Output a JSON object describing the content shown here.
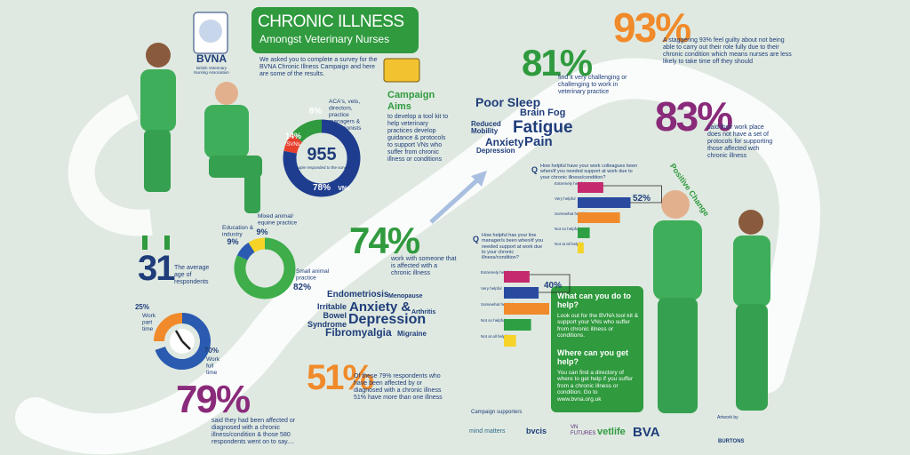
{
  "header": {
    "title": "CHRONIC ILLNESS",
    "subtitle": "Amongst Veterinary Nurses"
  },
  "logo": {
    "name": "BVNA",
    "full_name": "British Veterinary Nursing Association"
  },
  "intro": "We asked you to complete a survey for the BVNA Chronic Illness Campaign and here are some of the results.",
  "campaign": {
    "title": "Campaign Aims",
    "text": "to develop a tool kit to help veterinary practices develop guidance & protocols to support VNs who suffer from chronic illness or conditions"
  },
  "respondents": {
    "total": "955",
    "total_label": "people responded to the survey",
    "segments": [
      {
        "label": "ACA's, vets, directors, practice managers & receptionists",
        "value": 8,
        "value_label": "8%",
        "color": "#e8402e"
      },
      {
        "label": "SVNs",
        "value": 14,
        "value_label": "14%",
        "color": "#2f9a3e"
      },
      {
        "label": "VNs",
        "value": 78,
        "value_label": "78%",
        "color": "#1f3d8f"
      }
    ]
  },
  "age": {
    "value": "31",
    "label": "The average age of respondents"
  },
  "practice": {
    "segments": [
      {
        "label": "Education & industry",
        "value": 9,
        "value_label": "9%",
        "color": "#2a5bb0"
      },
      {
        "label": "Mixed animal/ equine practice",
        "value": 9,
        "value_label": "9%",
        "color": "#f5d327"
      },
      {
        "label": "Small animal practice",
        "value": 82,
        "value_label": "82%",
        "color": "#3fae4a"
      }
    ]
  },
  "work": {
    "segments": [
      {
        "label": "Work part time",
        "value": 25,
        "value_label": "25%",
        "color": "#f08a2a"
      },
      {
        "label": "Work full time",
        "value": 70,
        "value_label": "70%",
        "color": "#2a5bb0"
      }
    ]
  },
  "stats": [
    {
      "value": "79%",
      "text": "said they had been affected or diagnosed with a chronic illness/condition & those 580 respondents went on to say...."
    },
    {
      "value": "51%",
      "text": "Of these 79% respondents who have been affected by or diagnosed with a chronic illness 51% have more than one illness"
    },
    {
      "value": "74%",
      "text": "work with someone that is affected with a chronic illness"
    },
    {
      "value": "81%",
      "text": "find it very challenging or challenging to work in veterinary practice"
    },
    {
      "value": "93%",
      "text": "A staggering 93% feel guilty about not being able to carry out their role fully due to their chronic condition which means nurses are less likely to take time off they should"
    },
    {
      "value": "83%",
      "text": "said their work place does not have a set of protocols for supporting those affected with chronic illness"
    }
  ],
  "positive_change": "Positive Change",
  "symptoms": [
    "Poor Sleep",
    "Brain Fog",
    "Reduced Mobility",
    "Fatigue",
    "Anxiety",
    "Pain",
    "Depression"
  ],
  "conditions": [
    "Endometriosis",
    "Menopause",
    "Irritable Bowel Syndrome",
    "Anxiety &",
    "Arthritis",
    "Depression",
    "Fibromyalgia",
    "Migraine"
  ],
  "colleagues": {
    "question": "How helpful have your work colleagues been when/if you needed support at work due to your chronic illness/condition?",
    "categories": [
      "Extremely helpful",
      "Very helpful",
      "Somewhat helpful",
      "Not so helpful",
      "Not at all helpful"
    ],
    "values": [
      17,
      35,
      28,
      8,
      4
    ],
    "colors": [
      "#c5296e",
      "#2a4aa0",
      "#f08a2a",
      "#2ea043",
      "#f5d327"
    ],
    "combined": "52%"
  },
  "managers": {
    "question": "How helpful has your line manager/s been when/if you needed support at work due to your chronic illness/condition?",
    "categories": [
      "Extremely helpful",
      "Very helpful",
      "Somewhat helpful",
      "Not so helpful",
      "Not at all helpful"
    ],
    "values": [
      17,
      23,
      30,
      18,
      8
    ],
    "colors": [
      "#c5296e",
      "#2a4aa0",
      "#f08a2a",
      "#2ea043",
      "#f5d327"
    ],
    "combined": "40%"
  },
  "help": {
    "title_1": "What can you do to help?",
    "text_1": "Look out for the BVNA tool kit & support your VNs who suffer from chronic illness or conditions.",
    "title_2": "Where can you get help?",
    "text_2": "You can find a directory of where to get help if you suffer from a chronic illness or condition. Go to www.bvna.org.uk"
  },
  "supporters": {
    "title": "Campaign supporters",
    "logos": [
      "mind matters",
      "bvcis",
      "VN FUTURES",
      "vetlife",
      "BVA"
    ]
  },
  "artwork": {
    "label": "Artwork by",
    "credit": "BURTONS"
  }
}
